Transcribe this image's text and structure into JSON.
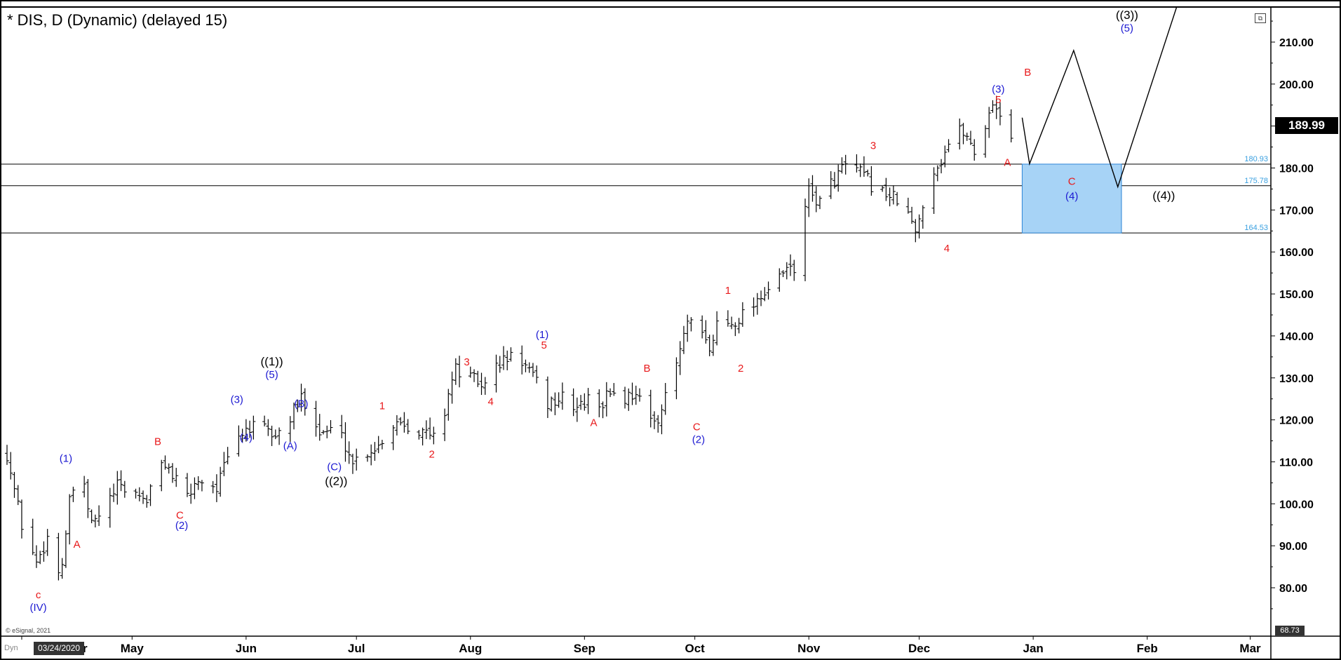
{
  "title": "* DIS, D (Dynamic) (delayed 15)",
  "last_price": "189.99",
  "lowest_label": "68.73",
  "cursor_date": "03/24/2020",
  "copyright": "© eSignal, 2021",
  "dyn_label": "Dyn",
  "colors": {
    "wave_red": "#e8191b",
    "wave_blue": "#1c19d2",
    "wave_black": "#000000",
    "box_fill": "#a7d3f6",
    "box_stroke": "#2e86d6",
    "level_text": "#3aa0e0"
  },
  "chart_data": {
    "type": "bar",
    "description_free": true,
    "x_axis": {
      "tick_labels": [
        "Apr",
        "May",
        "Jun",
        "Jul",
        "Aug",
        "Sep",
        "Oct",
        "Nov",
        "Dec",
        "Jan",
        "Feb",
        "Mar"
      ],
      "tick_display": [
        "r",
        "May",
        "Jun",
        "Jul",
        "Aug",
        "Sep",
        "Oct",
        "Nov",
        "Dec",
        "Jan",
        "Feb",
        "Mar"
      ],
      "tick_day": [
        4,
        34,
        65,
        95,
        126,
        157,
        187,
        218,
        248,
        279,
        310,
        338
      ]
    },
    "y_axis": {
      "ylim": [
        70,
        218
      ],
      "ticks": [
        "80.00",
        "90.00",
        "100.00",
        "110.00",
        "120.00",
        "130.00",
        "140.00",
        "150.00",
        "160.00",
        "170.00",
        "180.00",
        "190.00",
        "200.00",
        "210.00"
      ],
      "tick_values": [
        80,
        90,
        100,
        110,
        120,
        130,
        140,
        150,
        160,
        170,
        180,
        190,
        200,
        210
      ]
    },
    "price_path": [
      [
        0,
        112
      ],
      [
        4,
        95
      ],
      [
        8,
        86
      ],
      [
        11,
        92
      ],
      [
        12,
        80
      ],
      [
        15,
        86
      ],
      [
        17,
        100
      ],
      [
        19,
        107
      ],
      [
        21,
        103
      ],
      [
        23,
        95
      ],
      [
        26,
        98
      ],
      [
        30,
        104
      ],
      [
        34,
        103
      ],
      [
        38,
        101
      ],
      [
        40,
        106
      ],
      [
        43,
        110
      ],
      [
        46,
        105
      ],
      [
        48,
        100
      ],
      [
        52,
        106
      ],
      [
        57,
        104
      ],
      [
        61,
        113
      ],
      [
        65,
        118
      ],
      [
        69,
        118
      ],
      [
        73,
        116
      ],
      [
        76,
        119
      ],
      [
        80,
        125
      ],
      [
        83,
        123
      ],
      [
        85,
        117
      ],
      [
        90,
        118
      ],
      [
        94,
        110
      ],
      [
        97,
        112
      ],
      [
        101,
        114
      ],
      [
        104,
        118
      ],
      [
        106,
        120
      ],
      [
        109,
        119
      ],
      [
        113,
        117
      ],
      [
        116,
        116
      ],
      [
        118,
        117
      ],
      [
        120,
        127
      ],
      [
        122,
        132
      ],
      [
        126,
        130
      ],
      [
        130,
        128
      ],
      [
        133,
        133
      ],
      [
        137,
        135
      ],
      [
        140,
        134
      ],
      [
        143,
        130
      ],
      [
        145,
        127
      ],
      [
        147,
        124
      ],
      [
        151,
        125
      ],
      [
        155,
        123
      ],
      [
        159,
        125
      ],
      [
        162,
        124
      ],
      [
        164,
        127
      ],
      [
        168,
        125
      ],
      [
        171,
        127
      ],
      [
        175,
        119
      ],
      [
        177,
        121
      ],
      [
        180,
        127
      ],
      [
        185,
        143
      ],
      [
        189,
        140
      ],
      [
        191,
        136
      ],
      [
        193,
        143
      ],
      [
        197,
        143
      ],
      [
        201,
        146
      ],
      [
        205,
        150
      ],
      [
        209,
        152
      ],
      [
        212,
        156
      ],
      [
        215,
        155
      ],
      [
        216,
        170
      ],
      [
        218,
        174
      ],
      [
        221,
        172
      ],
      [
        224,
        176
      ],
      [
        227,
        180
      ],
      [
        230,
        180
      ],
      [
        233,
        178
      ],
      [
        236,
        175
      ],
      [
        239,
        174
      ],
      [
        242,
        172
      ],
      [
        245,
        169
      ],
      [
        247,
        164
      ],
      [
        249,
        172
      ],
      [
        251,
        178
      ],
      [
        254,
        182
      ],
      [
        257,
        188
      ],
      [
        260,
        189
      ],
      [
        263,
        184
      ],
      [
        266,
        190
      ],
      [
        268,
        196
      ],
      [
        270,
        193
      ],
      [
        272,
        195
      ],
      [
        273,
        186
      ]
    ],
    "projection_path": [
      [
        276,
        192
      ],
      [
        278,
        181
      ],
      [
        290,
        208
      ],
      [
        302,
        175.5
      ],
      [
        318,
        220
      ]
    ],
    "levels": [
      {
        "value": 180.93,
        "label": "180.93"
      },
      {
        "value": 175.78,
        "label": "175.78"
      },
      {
        "value": 164.53,
        "label": "164.53"
      }
    ],
    "target_box": {
      "x0": 276,
      "x1": 303,
      "y0": 164.53,
      "y1": 180.93
    },
    "wave_labels": [
      {
        "text": "c",
        "x": 8.5,
        "y": 77.5,
        "color": "wave_red"
      },
      {
        "text": "(IV)",
        "x": 8.5,
        "y": 74.5,
        "color": "wave_blue"
      },
      {
        "text": "(1)",
        "x": 16,
        "y": 110,
        "color": "wave_blue"
      },
      {
        "text": "A",
        "x": 19,
        "y": 89.5,
        "color": "wave_red"
      },
      {
        "text": "B",
        "x": 41,
        "y": 114,
        "color": "wave_red"
      },
      {
        "text": "C",
        "x": 47,
        "y": 96.5,
        "color": "wave_red"
      },
      {
        "text": "(2)",
        "x": 47.5,
        "y": 94,
        "color": "wave_blue"
      },
      {
        "text": "(3)",
        "x": 62.5,
        "y": 124,
        "color": "wave_blue"
      },
      {
        "text": "(4)",
        "x": 65,
        "y": 115,
        "color": "wave_blue"
      },
      {
        "text": "((1))",
        "x": 72,
        "y": 133,
        "color": "wave_black"
      },
      {
        "text": "(5)",
        "x": 72,
        "y": 130,
        "color": "wave_blue"
      },
      {
        "text": "(B)",
        "x": 80,
        "y": 123,
        "color": "wave_blue"
      },
      {
        "text": "(A)",
        "x": 77,
        "y": 113,
        "color": "wave_blue"
      },
      {
        "text": "(C)",
        "x": 89,
        "y": 108,
        "color": "wave_blue"
      },
      {
        "text": "((2))",
        "x": 89.5,
        "y": 104.5,
        "color": "wave_black"
      },
      {
        "text": "1",
        "x": 102,
        "y": 122.5,
        "color": "wave_red"
      },
      {
        "text": "2",
        "x": 115.5,
        "y": 111,
        "color": "wave_red"
      },
      {
        "text": "3",
        "x": 125,
        "y": 133,
        "color": "wave_red"
      },
      {
        "text": "4",
        "x": 131.5,
        "y": 123.5,
        "color": "wave_red"
      },
      {
        "text": "(1)",
        "x": 145.5,
        "y": 139.5,
        "color": "wave_blue"
      },
      {
        "text": "5",
        "x": 146,
        "y": 137,
        "color": "wave_red"
      },
      {
        "text": "A",
        "x": 159.5,
        "y": 118.5,
        "color": "wave_red"
      },
      {
        "text": "B",
        "x": 174,
        "y": 131.5,
        "color": "wave_red"
      },
      {
        "text": "C",
        "x": 187.5,
        "y": 117.5,
        "color": "wave_red"
      },
      {
        "text": "(2)",
        "x": 188,
        "y": 114.5,
        "color": "wave_blue"
      },
      {
        "text": "1",
        "x": 196,
        "y": 150,
        "color": "wave_red"
      },
      {
        "text": "2",
        "x": 199.5,
        "y": 131.5,
        "color": "wave_red"
      },
      {
        "text": "3",
        "x": 235.5,
        "y": 184.5,
        "color": "wave_red"
      },
      {
        "text": "4",
        "x": 255.5,
        "y": 160,
        "color": "wave_red"
      },
      {
        "text": "(3)",
        "x": 269.5,
        "y": 198,
        "color": "wave_blue"
      },
      {
        "text": "5",
        "x": 269.5,
        "y": 195.5,
        "color": "wave_red"
      },
      {
        "text": "A",
        "x": 272,
        "y": 180.5,
        "color": "wave_red"
      },
      {
        "text": "B",
        "x": 277.5,
        "y": 202,
        "color": "wave_red"
      },
      {
        "text": "C",
        "x": 289.5,
        "y": 176,
        "color": "wave_red"
      },
      {
        "text": "(4)",
        "x": 289.5,
        "y": 172.5,
        "color": "wave_blue"
      },
      {
        "text": "((3))",
        "x": 304.5,
        "y": 215.5,
        "color": "wave_black"
      },
      {
        "text": "(5)",
        "x": 304.5,
        "y": 212.5,
        "color": "wave_blue"
      },
      {
        "text": "((4))",
        "x": 314.5,
        "y": 172.5,
        "color": "wave_black"
      }
    ]
  }
}
